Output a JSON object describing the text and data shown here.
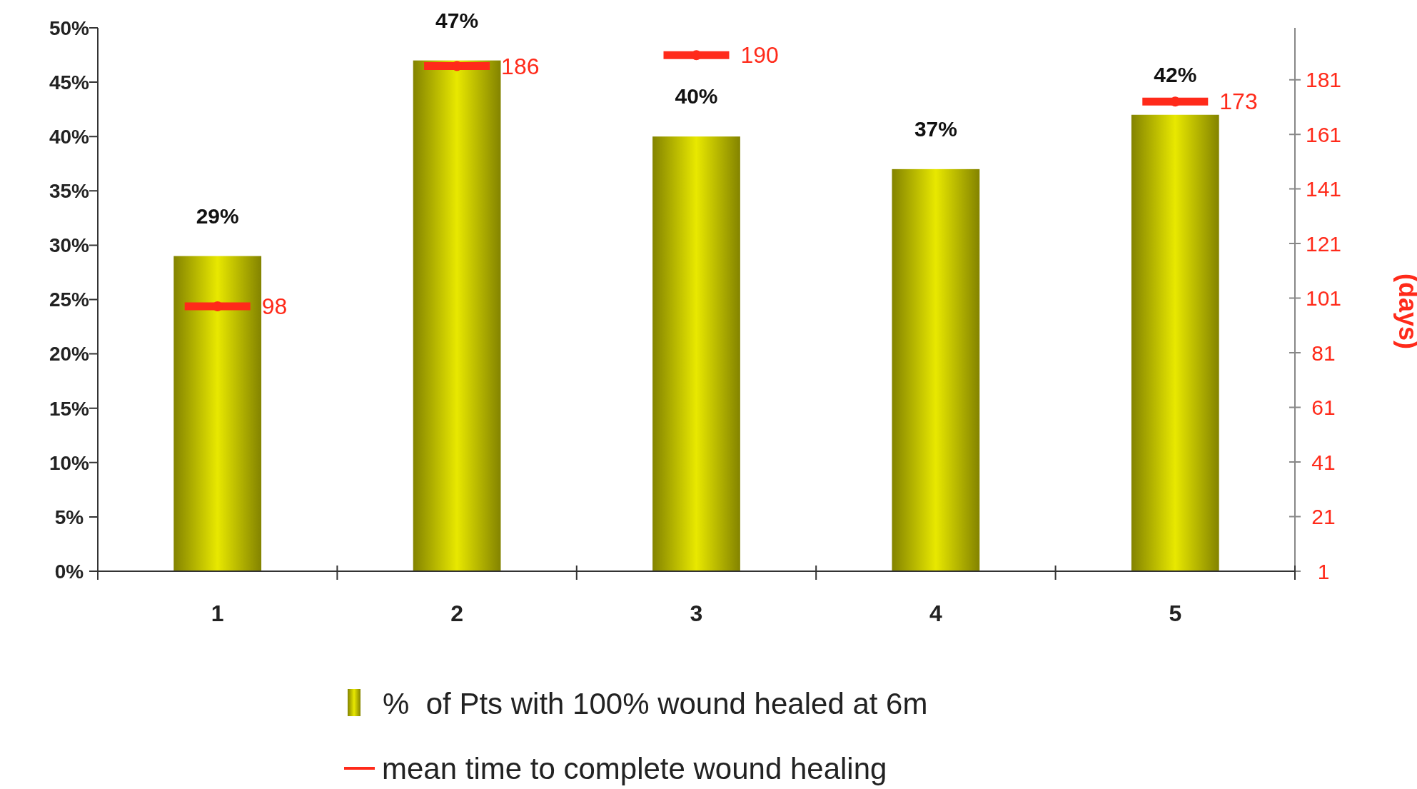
{
  "chart_data": {
    "type": "bar",
    "categories": [
      "1",
      "2",
      "3",
      "4",
      "5"
    ],
    "series": [
      {
        "name": "%  of Pts with 100% wound healed at 6m",
        "type": "bar",
        "color": "#e8e800",
        "values": [
          29,
          47,
          40,
          37,
          42
        ],
        "value_labels": [
          "29%",
          "47%",
          "40%",
          "37%",
          "42%"
        ]
      },
      {
        "name": "mean time to complete wound healing",
        "type": "scatter",
        "axis": "y2",
        "color": "#ff2a1a",
        "x": [
          "1",
          "2",
          "3",
          "4",
          "5"
        ],
        "values": [
          98,
          186,
          190,
          null,
          173
        ],
        "value_labels": [
          "98",
          "186",
          "190",
          null,
          "173"
        ]
      }
    ],
    "ylim": [
      0,
      50
    ],
    "yticks": [
      {
        "value": 0,
        "label": "0%"
      },
      {
        "value": 5,
        "label": "5%"
      },
      {
        "value": 10,
        "label": "10%"
      },
      {
        "value": 15,
        "label": "15%"
      },
      {
        "value": 20,
        "label": "20%"
      },
      {
        "value": 25,
        "label": "25%"
      },
      {
        "value": 30,
        "label": "30%"
      },
      {
        "value": 35,
        "label": "35%"
      },
      {
        "value": 40,
        "label": "40%"
      },
      {
        "value": 45,
        "label": "45%"
      },
      {
        "value": 50,
        "label": "50%"
      }
    ],
    "y2lim": [
      1,
      200
    ],
    "y2ticks": [
      1,
      21,
      41,
      61,
      81,
      101,
      121,
      141,
      161,
      181
    ],
    "y2label": "(days)",
    "legend": "bottom",
    "grid": false
  }
}
